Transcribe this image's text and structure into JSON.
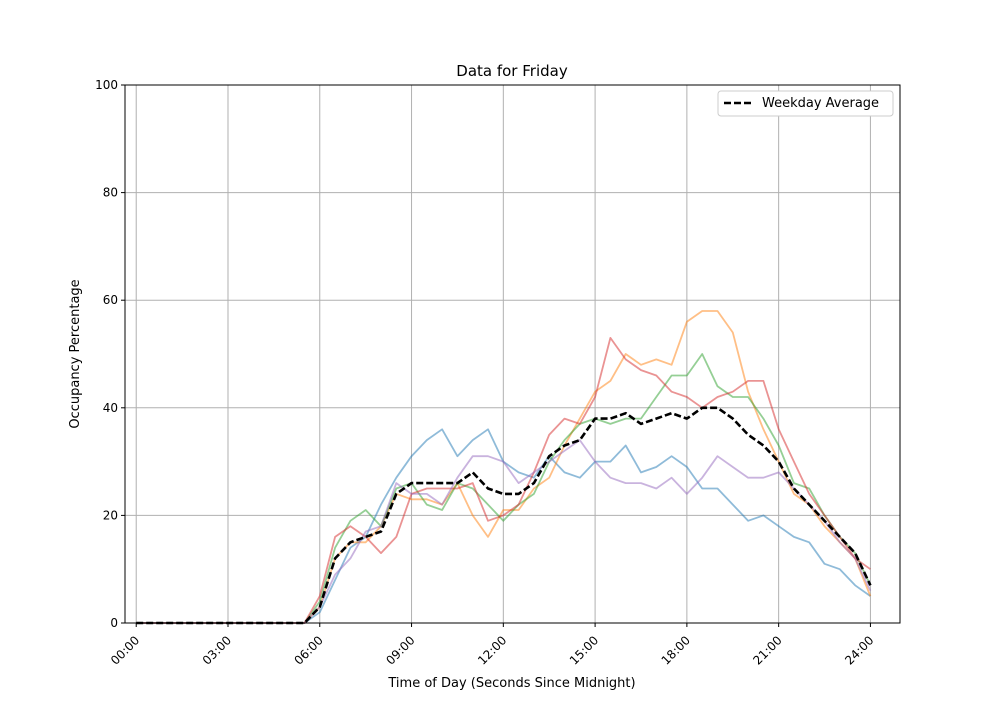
{
  "chart_data": {
    "type": "line",
    "title": "Data for Friday",
    "xlabel": "Time of Day (Seconds Since Midnight)",
    "ylabel": "Occupancy Percentage",
    "ylim": [
      0,
      100
    ],
    "yticks": [
      "0",
      "20",
      "40",
      "60",
      "80",
      "100"
    ],
    "xticks": [
      "00:00",
      "03:00",
      "06:00",
      "09:00",
      "12:00",
      "15:00",
      "18:00",
      "21:00",
      "24:00"
    ],
    "xlim": [
      "-00:22",
      "24:58"
    ],
    "grid": true,
    "legend": {
      "placement": "top-right",
      "entries": [
        "Weekday Average"
      ]
    },
    "x": [
      "00:00",
      "00:30",
      "01:00",
      "01:30",
      "02:00",
      "02:30",
      "03:00",
      "03:30",
      "04:00",
      "04:30",
      "05:00",
      "05:30",
      "06:00",
      "06:30",
      "07:00",
      "07:30",
      "08:00",
      "08:30",
      "09:00",
      "09:30",
      "10:00",
      "10:30",
      "11:00",
      "11:30",
      "12:00",
      "12:30",
      "13:00",
      "13:30",
      "14:00",
      "14:30",
      "15:00",
      "15:30",
      "16:00",
      "16:30",
      "17:00",
      "17:30",
      "18:00",
      "18:30",
      "19:00",
      "19:30",
      "20:00",
      "20:30",
      "21:00",
      "21:30",
      "22:00",
      "22:30",
      "23:00",
      "23:30",
      "24:00"
    ],
    "series": [
      {
        "color": "#1f77b4",
        "values": [
          0,
          0,
          0,
          0,
          0,
          0,
          0,
          0,
          0,
          0,
          0,
          0,
          2,
          8,
          14,
          16,
          22,
          27,
          31,
          34,
          36,
          31,
          34,
          36,
          30,
          28,
          27,
          31,
          28,
          27,
          30,
          30,
          33,
          28,
          29,
          31,
          29,
          25,
          25,
          22,
          19,
          20,
          18,
          16,
          15,
          11,
          10,
          7,
          5
        ]
      },
      {
        "color": "#ff7f0e",
        "values": [
          0,
          0,
          0,
          0,
          0,
          0,
          0,
          0,
          0,
          0,
          0,
          0,
          3,
          12,
          15,
          15,
          18,
          24,
          23,
          23,
          22,
          26,
          20,
          16,
          21,
          21,
          25,
          27,
          33,
          38,
          43,
          45,
          50,
          48,
          49,
          48,
          56,
          58,
          58,
          54,
          43,
          36,
          30,
          24,
          22,
          18,
          15,
          12,
          5
        ]
      },
      {
        "color": "#2ca02c",
        "values": [
          0,
          0,
          0,
          0,
          0,
          0,
          0,
          0,
          0,
          0,
          0,
          0,
          4,
          14,
          19,
          21,
          18,
          25,
          26,
          22,
          21,
          26,
          25,
          22,
          19,
          22,
          24,
          30,
          34,
          37,
          38,
          37,
          38,
          38,
          42,
          46,
          46,
          50,
          44,
          42,
          42,
          38,
          33,
          26,
          25,
          20,
          16,
          13,
          7
        ]
      },
      {
        "color": "#d62728",
        "values": [
          0,
          0,
          0,
          0,
          0,
          0,
          0,
          0,
          0,
          0,
          0,
          0,
          5,
          16,
          18,
          16,
          13,
          16,
          24,
          25,
          25,
          25,
          26,
          19,
          20,
          22,
          28,
          35,
          38,
          37,
          42,
          53,
          49,
          47,
          46,
          43,
          42,
          40,
          42,
          43,
          45,
          45,
          36,
          30,
          24,
          20,
          16,
          12,
          10
        ]
      },
      {
        "color": "#9467bd",
        "values": [
          0,
          0,
          0,
          0,
          0,
          0,
          0,
          0,
          0,
          0,
          0,
          0,
          3,
          9,
          12,
          17,
          18,
          26,
          24,
          24,
          22,
          27,
          31,
          31,
          30,
          26,
          28,
          30,
          32,
          34,
          30,
          27,
          26,
          26,
          25,
          27,
          24,
          27,
          31,
          29,
          27,
          27,
          28,
          25,
          22,
          19,
          15,
          12,
          6
        ]
      },
      {
        "name": "Weekday Average",
        "color": "#000000",
        "dashed": true,
        "values": [
          0,
          0,
          0,
          0,
          0,
          0,
          0,
          0,
          0,
          0,
          0,
          0,
          3,
          12,
          15,
          16,
          17,
          24,
          26,
          26,
          26,
          26,
          28,
          25,
          24,
          24,
          26,
          31,
          33,
          34,
          38,
          38,
          39,
          37,
          38,
          39,
          38,
          40,
          40,
          38,
          35,
          33,
          30,
          25,
          22,
          19,
          16,
          13,
          7
        ]
      }
    ]
  }
}
